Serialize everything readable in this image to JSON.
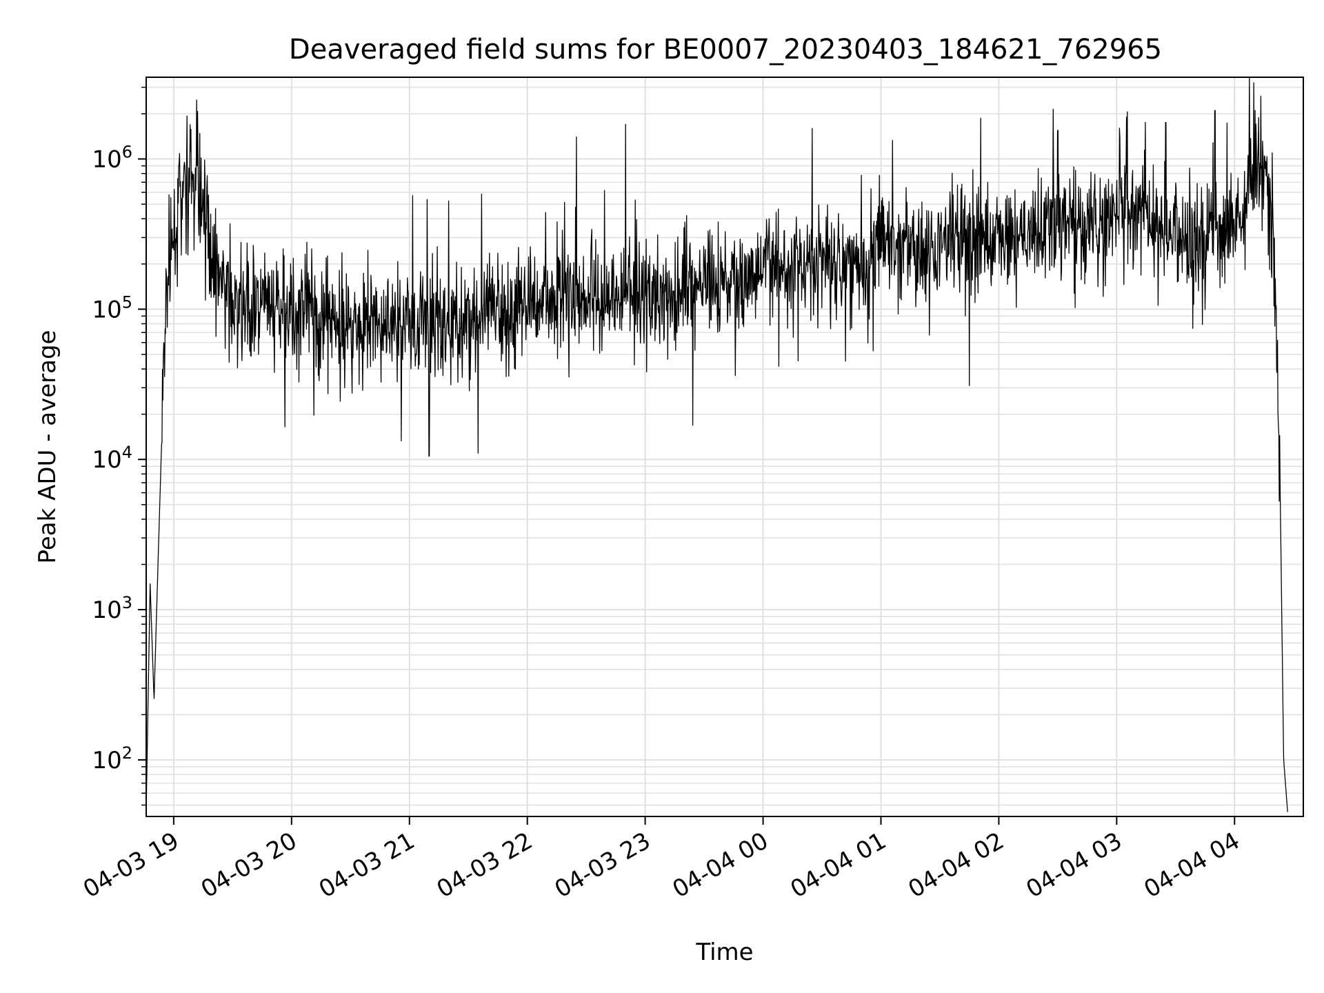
{
  "chart_data": {
    "type": "line",
    "title": "Deaveraged field sums for BE0007_20230403_184621_762965",
    "xlabel": "Time",
    "ylabel": "Peak ADU - average",
    "yscale": "log",
    "ylim": [
      42,
      3500000
    ],
    "xlim": [
      "2023-04-03 18:46",
      "2023-04-04 04:35"
    ],
    "grid": true,
    "legend": "none",
    "colors": {
      "line": "#000000",
      "grid": "#e0e0e0",
      "axis": "#000000"
    },
    "x_ticks": [
      {
        "t": "2023-04-03 19:00",
        "label": "04-03 19"
      },
      {
        "t": "2023-04-03 20:00",
        "label": "04-03 20"
      },
      {
        "t": "2023-04-03 21:00",
        "label": "04-03 21"
      },
      {
        "t": "2023-04-03 22:00",
        "label": "04-03 22"
      },
      {
        "t": "2023-04-03 23:00",
        "label": "04-03 23"
      },
      {
        "t": "2023-04-04 00:00",
        "label": "04-04 00"
      },
      {
        "t": "2023-04-04 01:00",
        "label": "04-04 01"
      },
      {
        "t": "2023-04-04 02:00",
        "label": "04-04 02"
      },
      {
        "t": "2023-04-04 03:00",
        "label": "04-04 03"
      },
      {
        "t": "2023-04-04 04:00",
        "label": "04-04 04"
      }
    ],
    "y_ticks": [
      {
        "value": 100,
        "base": "10",
        "exp": "2"
      },
      {
        "value": 1000,
        "base": "10",
        "exp": "3"
      },
      {
        "value": 10000,
        "base": "10",
        "exp": "4"
      },
      {
        "value": 100000,
        "base": "10",
        "exp": "5"
      },
      {
        "value": 1000000,
        "base": "10",
        "exp": "6"
      }
    ],
    "series": [
      {
        "x": [
          "2023-04-03 18:46",
          "2023-04-03 18:48",
          "2023-04-03 18:50",
          "2023-04-03 18:52",
          "2023-04-03 18:54",
          "2023-04-03 18:56",
          "2023-04-03 19:00",
          "2023-04-03 19:05",
          "2023-04-03 19:10",
          "2023-04-03 19:15",
          "2023-04-03 19:20",
          "2023-04-03 19:25",
          "2023-04-03 19:30",
          "2023-04-03 19:40",
          "2023-04-03 19:50",
          "2023-04-03 20:00",
          "2023-04-03 20:10",
          "2023-04-03 20:20",
          "2023-04-03 20:30",
          "2023-04-03 20:40",
          "2023-04-03 20:50",
          "2023-04-03 21:00",
          "2023-04-03 21:10",
          "2023-04-03 21:20",
          "2023-04-03 21:30",
          "2023-04-03 21:40",
          "2023-04-03 21:50",
          "2023-04-03 22:00",
          "2023-04-03 22:10",
          "2023-04-03 22:20",
          "2023-04-03 22:30",
          "2023-04-03 22:40",
          "2023-04-03 22:50",
          "2023-04-03 23:00",
          "2023-04-03 23:10",
          "2023-04-03 23:20",
          "2023-04-03 23:30",
          "2023-04-03 23:40",
          "2023-04-03 23:50",
          "2023-04-04 00:00",
          "2023-04-04 00:10",
          "2023-04-04 00:20",
          "2023-04-04 00:30",
          "2023-04-04 00:40",
          "2023-04-04 00:50",
          "2023-04-04 01:00",
          "2023-04-04 01:10",
          "2023-04-04 01:20",
          "2023-04-04 01:30",
          "2023-04-04 01:40",
          "2023-04-04 01:50",
          "2023-04-04 02:00",
          "2023-04-04 02:10",
          "2023-04-04 02:20",
          "2023-04-04 02:30",
          "2023-04-04 02:40",
          "2023-04-04 02:50",
          "2023-04-04 03:00",
          "2023-04-04 03:10",
          "2023-04-04 03:20",
          "2023-04-04 03:30",
          "2023-04-04 03:40",
          "2023-04-04 03:50",
          "2023-04-04 04:00",
          "2023-04-04 04:05",
          "2023-04-04 04:10",
          "2023-04-04 04:15",
          "2023-04-04 04:20",
          "2023-04-04 04:23",
          "2023-04-04 04:25",
          "2023-04-04 04:27"
        ],
        "values": [
          45,
          1500,
          250,
          2000,
          15000,
          120000,
          300000,
          650000,
          700000,
          450000,
          250000,
          150000,
          100000,
          105000,
          98000,
          95000,
          92000,
          88000,
          85000,
          80000,
          78000,
          82000,
          80000,
          85000,
          90000,
          92000,
          95000,
          110000,
          120000,
          130000,
          125000,
          115000,
          120000,
          125000,
          130000,
          135000,
          140000,
          150000,
          160000,
          180000,
          200000,
          210000,
          215000,
          220000,
          235000,
          245000,
          250000,
          260000,
          270000,
          280000,
          290000,
          300000,
          310000,
          320000,
          330000,
          340000,
          350000,
          400000,
          450000,
          350000,
          320000,
          300000,
          310000,
          350000,
          600000,
          1000000,
          800000,
          300000,
          10000,
          100,
          45
        ],
        "noise_sigma_log10": 0.18,
        "spike_peaks": [
          {
            "x": "2023-04-03 21:10",
            "value": 10500,
            "dir": "down"
          },
          {
            "x": "2023-04-03 21:35",
            "value": 11000,
            "dir": "down"
          },
          {
            "x": "2023-04-03 22:25",
            "value": 1400000,
            "dir": "up"
          },
          {
            "x": "2023-04-03 22:50",
            "value": 1700000,
            "dir": "up"
          },
          {
            "x": "2023-04-04 00:25",
            "value": 1600000,
            "dir": "up"
          },
          {
            "x": "2023-04-04 01:45",
            "value": 31000,
            "dir": "down"
          },
          {
            "x": "2023-04-04 02:30",
            "value": 1550000,
            "dir": "up"
          },
          {
            "x": "2023-04-04 03:05",
            "value": 1900000,
            "dir": "up"
          },
          {
            "x": "2023-04-04 03:25",
            "value": 1750000,
            "dir": "up"
          },
          {
            "x": "2023-04-04 03:50",
            "value": 2100000,
            "dir": "up"
          }
        ]
      }
    ]
  }
}
